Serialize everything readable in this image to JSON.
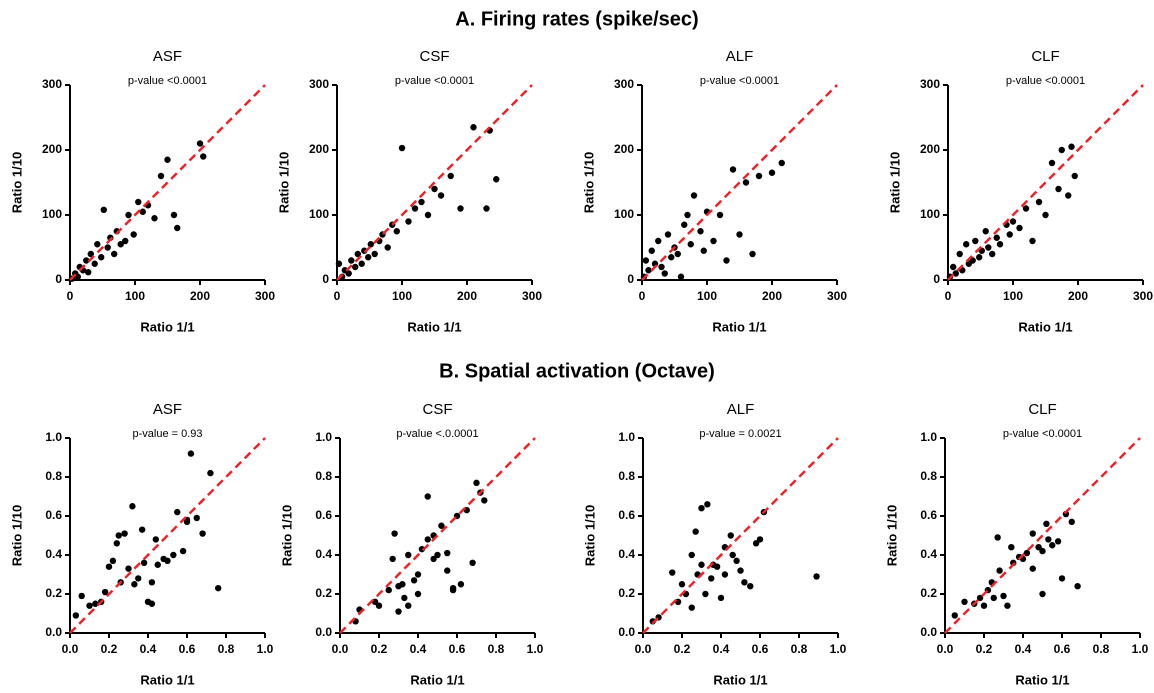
{
  "headings": [
    "A. Firing rates (spike/sec)",
    "B. Spatial activation (Octave)"
  ],
  "chart_data": [
    {
      "type": "scatter",
      "title": "ASF",
      "annotation": "p-value <0.0001",
      "xlabel": "Ratio 1/1",
      "ylabel": "Ratio 1/10",
      "color": "#000000",
      "diagonal": true,
      "diagonal_color": "#e8262a",
      "xlim": [
        0,
        300
      ],
      "ylim": [
        0,
        300
      ],
      "xticks": [
        0,
        100,
        200,
        300
      ],
      "yticks": [
        0,
        100,
        200,
        300
      ],
      "x": [
        3,
        8,
        12,
        15,
        20,
        25,
        28,
        32,
        38,
        42,
        48,
        52,
        58,
        62,
        68,
        72,
        78,
        85,
        90,
        98,
        105,
        112,
        120,
        130,
        140,
        150,
        160,
        165,
        200,
        205
      ],
      "y": [
        2,
        10,
        5,
        20,
        15,
        30,
        12,
        40,
        25,
        55,
        35,
        108,
        50,
        65,
        40,
        75,
        55,
        60,
        100,
        70,
        120,
        105,
        115,
        95,
        160,
        185,
        100,
        80,
        210,
        190
      ]
    },
    {
      "type": "scatter",
      "title": "CSF",
      "annotation": "p-value <0.0001",
      "xlabel": "Ratio 1/1",
      "ylabel": "Ratio 1/10",
      "color": "#000000",
      "diagonal": true,
      "diagonal_color": "#e8262a",
      "xlim": [
        0,
        300
      ],
      "ylim": [
        0,
        300
      ],
      "xticks": [
        0,
        100,
        200,
        300
      ],
      "yticks": [
        0,
        100,
        200,
        300
      ],
      "x": [
        3,
        8,
        12,
        18,
        22,
        28,
        32,
        38,
        42,
        48,
        52,
        58,
        65,
        70,
        78,
        85,
        92,
        100,
        110,
        120,
        130,
        140,
        150,
        160,
        175,
        190,
        210,
        230,
        235,
        245
      ],
      "y": [
        25,
        5,
        15,
        10,
        30,
        20,
        40,
        25,
        45,
        35,
        55,
        40,
        60,
        70,
        50,
        85,
        75,
        203,
        90,
        110,
        120,
        100,
        140,
        130,
        160,
        110,
        235,
        110,
        230,
        155
      ]
    },
    {
      "type": "scatter",
      "title": "ALF",
      "annotation": "p-value <0.0001",
      "xlabel": "Ratio 1/1",
      "ylabel": "Ratio 1/10",
      "color": "#000000",
      "diagonal": true,
      "diagonal_color": "#e8262a",
      "xlim": [
        0,
        300
      ],
      "ylim": [
        0,
        300
      ],
      "xticks": [
        0,
        100,
        200,
        300
      ],
      "yticks": [
        0,
        100,
        200,
        300
      ],
      "x": [
        3,
        6,
        10,
        15,
        20,
        25,
        30,
        35,
        40,
        45,
        50,
        55,
        60,
        65,
        70,
        75,
        80,
        90,
        95,
        100,
        110,
        120,
        130,
        140,
        150,
        160,
        170,
        180,
        200,
        215
      ],
      "y": [
        5,
        30,
        15,
        45,
        25,
        60,
        20,
        10,
        70,
        35,
        50,
        40,
        5,
        85,
        100,
        55,
        130,
        75,
        45,
        105,
        60,
        100,
        30,
        170,
        70,
        150,
        40,
        160,
        165,
        180
      ]
    },
    {
      "type": "scatter",
      "title": "CLF",
      "annotation": "p-value <0.0001",
      "xlabel": "Ratio 1/1",
      "ylabel": "Ratio 1/10",
      "color": "#000000",
      "diagonal": true,
      "diagonal_color": "#e8262a",
      "xlim": [
        0,
        300
      ],
      "ylim": [
        0,
        300
      ],
      "xticks": [
        0,
        100,
        200,
        300
      ],
      "yticks": [
        0,
        100,
        200,
        300
      ],
      "x": [
        3,
        8,
        12,
        18,
        22,
        28,
        32,
        38,
        42,
        48,
        52,
        58,
        62,
        68,
        75,
        80,
        90,
        95,
        100,
        110,
        120,
        130,
        140,
        150,
        160,
        170,
        175,
        185,
        190,
        195
      ],
      "y": [
        5,
        20,
        10,
        40,
        15,
        55,
        25,
        30,
        60,
        35,
        45,
        75,
        50,
        40,
        65,
        55,
        85,
        70,
        90,
        80,
        110,
        60,
        120,
        100,
        180,
        140,
        200,
        130,
        205,
        160
      ]
    },
    {
      "type": "scatter",
      "title": "ASF",
      "annotation": "p-value = 0.93",
      "xlabel": "Ratio 1/1",
      "ylabel": "Ratio 1/10",
      "color": "#000000",
      "diagonal": true,
      "diagonal_color": "#e8262a",
      "xlim": [
        0,
        1
      ],
      "ylim": [
        0,
        1
      ],
      "xticks": [
        {
          "value": 0,
          "label": "0.0"
        },
        0.2,
        0.4,
        0.6,
        0.8,
        {
          "value": 1,
          "label": "1.0"
        }
      ],
      "yticks": [
        {
          "value": 0,
          "label": "0.0"
        },
        0.2,
        0.4,
        0.6,
        0.8,
        {
          "value": 1,
          "label": "1.0"
        }
      ],
      "x": [
        0.03,
        0.06,
        0.1,
        0.13,
        0.16,
        0.18,
        0.2,
        0.22,
        0.24,
        0.25,
        0.26,
        0.28,
        0.3,
        0.32,
        0.33,
        0.35,
        0.37,
        0.38,
        0.4,
        0.42,
        0.42,
        0.44,
        0.48,
        0.5,
        0.53,
        0.55,
        0.58,
        0.6,
        0.62,
        0.65,
        0.68,
        0.72,
        0.76,
        0.6,
        0.45
      ],
      "y": [
        0.09,
        0.19,
        0.14,
        0.15,
        0.16,
        0.21,
        0.34,
        0.37,
        0.46,
        0.5,
        0.26,
        0.51,
        0.33,
        0.65,
        0.25,
        0.28,
        0.53,
        0.36,
        0.16,
        0.15,
        0.26,
        0.48,
        0.38,
        0.37,
        0.4,
        0.62,
        0.42,
        0.57,
        0.92,
        0.59,
        0.51,
        0.82,
        0.23,
        0.58,
        0.35
      ]
    },
    {
      "type": "scatter",
      "title": "CSF",
      "annotation": "p-value <.0.0001",
      "xlabel": "Ratio 1/1",
      "ylabel": "Ratio 1/10",
      "color": "#000000",
      "diagonal": true,
      "diagonal_color": "#e8262a",
      "xlim": [
        0,
        1
      ],
      "ylim": [
        0,
        1
      ],
      "xticks": [
        {
          "value": 0,
          "label": "0.0"
        },
        0.2,
        0.4,
        0.6,
        0.8,
        {
          "value": 1,
          "label": "1.0"
        }
      ],
      "yticks": [
        {
          "value": 0,
          "label": "0.0"
        },
        0.2,
        0.4,
        0.6,
        0.8,
        {
          "value": 1,
          "label": "1.0"
        }
      ],
      "x": [
        0.08,
        0.1,
        0.18,
        0.2,
        0.25,
        0.27,
        0.28,
        0.3,
        0.3,
        0.32,
        0.35,
        0.35,
        0.38,
        0.4,
        0.4,
        0.42,
        0.45,
        0.48,
        0.48,
        0.5,
        0.52,
        0.55,
        0.55,
        0.58,
        0.6,
        0.62,
        0.65,
        0.68,
        0.7,
        0.72,
        0.74,
        0.45,
        0.33,
        0.58
      ],
      "y": [
        0.06,
        0.12,
        0.16,
        0.14,
        0.22,
        0.38,
        0.51,
        0.24,
        0.11,
        0.25,
        0.4,
        0.14,
        0.27,
        0.3,
        0.2,
        0.43,
        0.7,
        0.38,
        0.5,
        0.4,
        0.55,
        0.41,
        0.32,
        0.22,
        0.6,
        0.25,
        0.63,
        0.36,
        0.77,
        0.72,
        0.68,
        0.48,
        0.18,
        0.23
      ]
    },
    {
      "type": "scatter",
      "title": "ALF",
      "annotation": "p-value = 0.0021",
      "xlabel": "Ratio 1/1",
      "ylabel": "Ratio 1/10",
      "color": "#000000",
      "diagonal": true,
      "diagonal_color": "#e8262a",
      "xlim": [
        0,
        1
      ],
      "ylim": [
        0,
        1
      ],
      "xticks": [
        {
          "value": 0,
          "label": "0.0"
        },
        0.2,
        0.4,
        0.6,
        0.8,
        {
          "value": 1,
          "label": "1.0"
        }
      ],
      "yticks": [
        {
          "value": 0,
          "label": "0.0"
        },
        0.2,
        0.4,
        0.6,
        0.8,
        {
          "value": 1,
          "label": "1.0"
        }
      ],
      "x": [
        0.05,
        0.08,
        0.15,
        0.18,
        0.2,
        0.22,
        0.25,
        0.27,
        0.28,
        0.3,
        0.32,
        0.33,
        0.35,
        0.36,
        0.38,
        0.4,
        0.42,
        0.42,
        0.45,
        0.46,
        0.48,
        0.5,
        0.52,
        0.55,
        0.58,
        0.6,
        0.62,
        0.3,
        0.25,
        0.89
      ],
      "y": [
        0.06,
        0.08,
        0.31,
        0.16,
        0.25,
        0.2,
        0.4,
        0.52,
        0.3,
        0.64,
        0.2,
        0.66,
        0.28,
        0.35,
        0.34,
        0.18,
        0.44,
        0.3,
        0.5,
        0.4,
        0.37,
        0.32,
        0.26,
        0.24,
        0.46,
        0.48,
        0.62,
        0.35,
        0.13,
        0.29
      ]
    },
    {
      "type": "scatter",
      "title": "CLF",
      "annotation": "p-value <0.0001",
      "xlabel": "Ratio 1/1",
      "ylabel": "Ratio 1/10",
      "color": "#000000",
      "diagonal": true,
      "diagonal_color": "#e8262a",
      "xlim": [
        0,
        1
      ],
      "ylim": [
        0,
        1
      ],
      "xticks": [
        {
          "value": 0,
          "label": "0.0"
        },
        0.2,
        0.4,
        0.6,
        0.8,
        {
          "value": 1,
          "label": "1.0"
        }
      ],
      "yticks": [
        {
          "value": 0,
          "label": "0.0"
        },
        0.2,
        0.4,
        0.6,
        0.8,
        {
          "value": 1,
          "label": "1.0"
        }
      ],
      "x": [
        0.05,
        0.1,
        0.15,
        0.18,
        0.2,
        0.22,
        0.24,
        0.25,
        0.27,
        0.28,
        0.3,
        0.32,
        0.34,
        0.35,
        0.38,
        0.4,
        0.42,
        0.45,
        0.48,
        0.5,
        0.52,
        0.53,
        0.55,
        0.58,
        0.6,
        0.62,
        0.65,
        0.68,
        0.45,
        0.5
      ],
      "y": [
        0.09,
        0.16,
        0.15,
        0.18,
        0.14,
        0.22,
        0.26,
        0.18,
        0.49,
        0.32,
        0.19,
        0.14,
        0.44,
        0.36,
        0.39,
        0.38,
        0.41,
        0.33,
        0.44,
        0.2,
        0.56,
        0.48,
        0.45,
        0.47,
        0.28,
        0.61,
        0.57,
        0.24,
        0.51,
        0.42
      ]
    }
  ]
}
